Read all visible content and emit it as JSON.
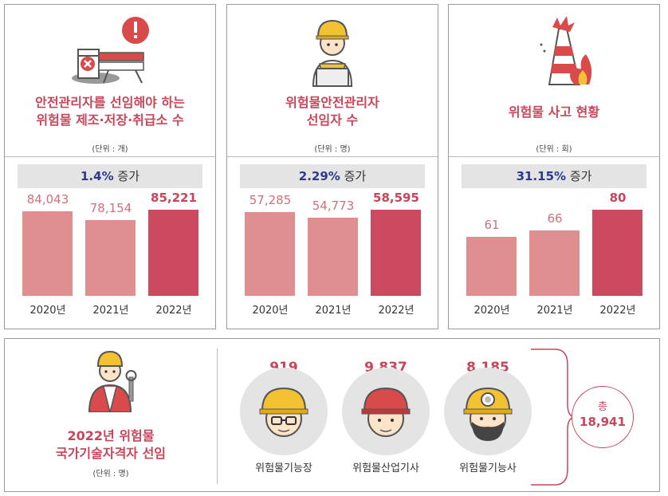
{
  "chart_data": [
    {
      "type": "bar",
      "title": "안전관리자를 선임해야 하는\n위험물 제조·저장·취급소 수",
      "unit": "(단위 : 개)",
      "increase_value": "1.4%",
      "increase_word": "증가",
      "categories": [
        "2020년",
        "2021년",
        "2022년"
      ],
      "values": [
        84043,
        78154,
        85221
      ],
      "labels": [
        "84,043",
        "78,154",
        "85,221"
      ]
    },
    {
      "type": "bar",
      "title": "위험물안전관리자\n선임자 수",
      "unit": "(단위 : 명)",
      "increase_value": "2.29%",
      "increase_word": "증가",
      "categories": [
        "2020년",
        "2021년",
        "2022년"
      ],
      "values": [
        57285,
        54773,
        58595
      ],
      "labels": [
        "57,285",
        "54,773",
        "58,595"
      ]
    },
    {
      "type": "bar",
      "title": "위험물 사고 현황",
      "unit": "(단위 : 회)",
      "increase_value": "31.15%",
      "increase_word": "증가",
      "categories": [
        "2020년",
        "2021년",
        "2022년"
      ],
      "values": [
        61,
        66,
        80
      ],
      "labels": [
        "61",
        "66",
        "80"
      ]
    },
    {
      "type": "table",
      "title": "2022년 위험물\n국가기술자격자 선임",
      "unit": "(단위 : 명)",
      "categories": [
        "위험물기능장",
        "위험물산업기사",
        "위험물기능사"
      ],
      "values": [
        919,
        9837,
        8185
      ],
      "labels": [
        "919",
        "9,837",
        "8,185"
      ],
      "total_label": "총",
      "total_value": "18,941"
    }
  ],
  "colors": {
    "accent": "#c8465a",
    "bar_light": "#df8f8f",
    "bar_dark": "#cc4960",
    "increase_text": "#2d3a8c"
  },
  "icons": [
    "barricade-warning-icon",
    "worker-tablet-icon",
    "cone-fire-icon",
    "worker-vest-wrench-icon",
    "hardhat-glasses-face-icon",
    "red-hardhat-face-icon",
    "headlamp-beard-face-icon"
  ]
}
